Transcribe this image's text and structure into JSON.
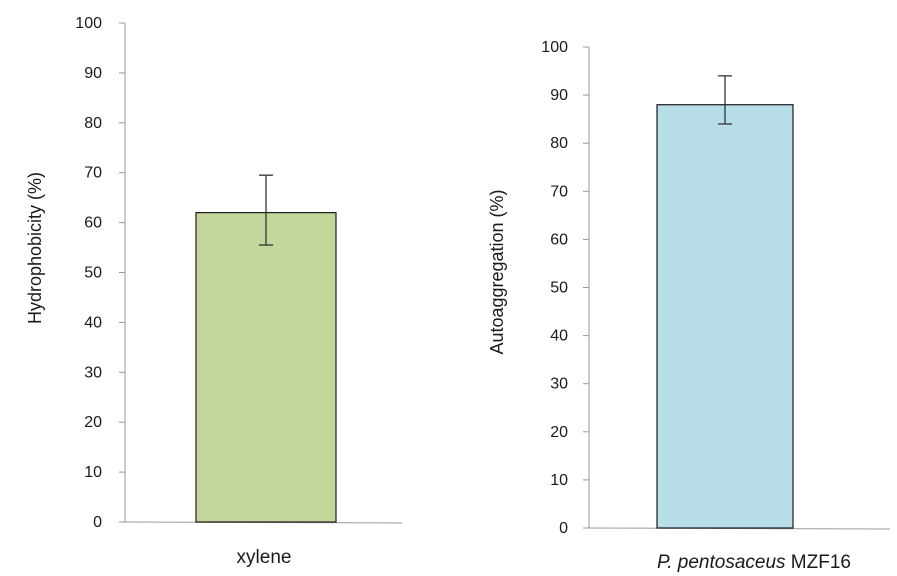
{
  "chart_data": [
    {
      "type": "bar",
      "ylabel": "Hydrophobicity  (%)",
      "ylim": [
        0,
        100
      ],
      "yticks": [
        "0",
        "10",
        "20",
        "30",
        "40",
        "50",
        "60",
        "70",
        "80",
        "90",
        "100"
      ],
      "categories": [
        "xylene"
      ],
      "values": [
        62
      ],
      "error": [
        [
          6.5,
          7.5
        ]
      ],
      "bar_color": "#c4d79b",
      "grid": false
    },
    {
      "type": "bar",
      "ylabel": "Autoaggregation  (%)",
      "ylim": [
        0,
        100
      ],
      "yticks": [
        "0",
        "10",
        "20",
        "30",
        "40",
        "50",
        "60",
        "70",
        "80",
        "90",
        "100"
      ],
      "categories": [
        "P. pentosaceus MZF16"
      ],
      "category_parts": {
        "italic": "P. pentosaceus",
        "plain": " MZF16"
      },
      "values": [
        88
      ],
      "error": [
        [
          4,
          6
        ]
      ],
      "bar_color": "#b7dde8",
      "grid": false
    }
  ]
}
